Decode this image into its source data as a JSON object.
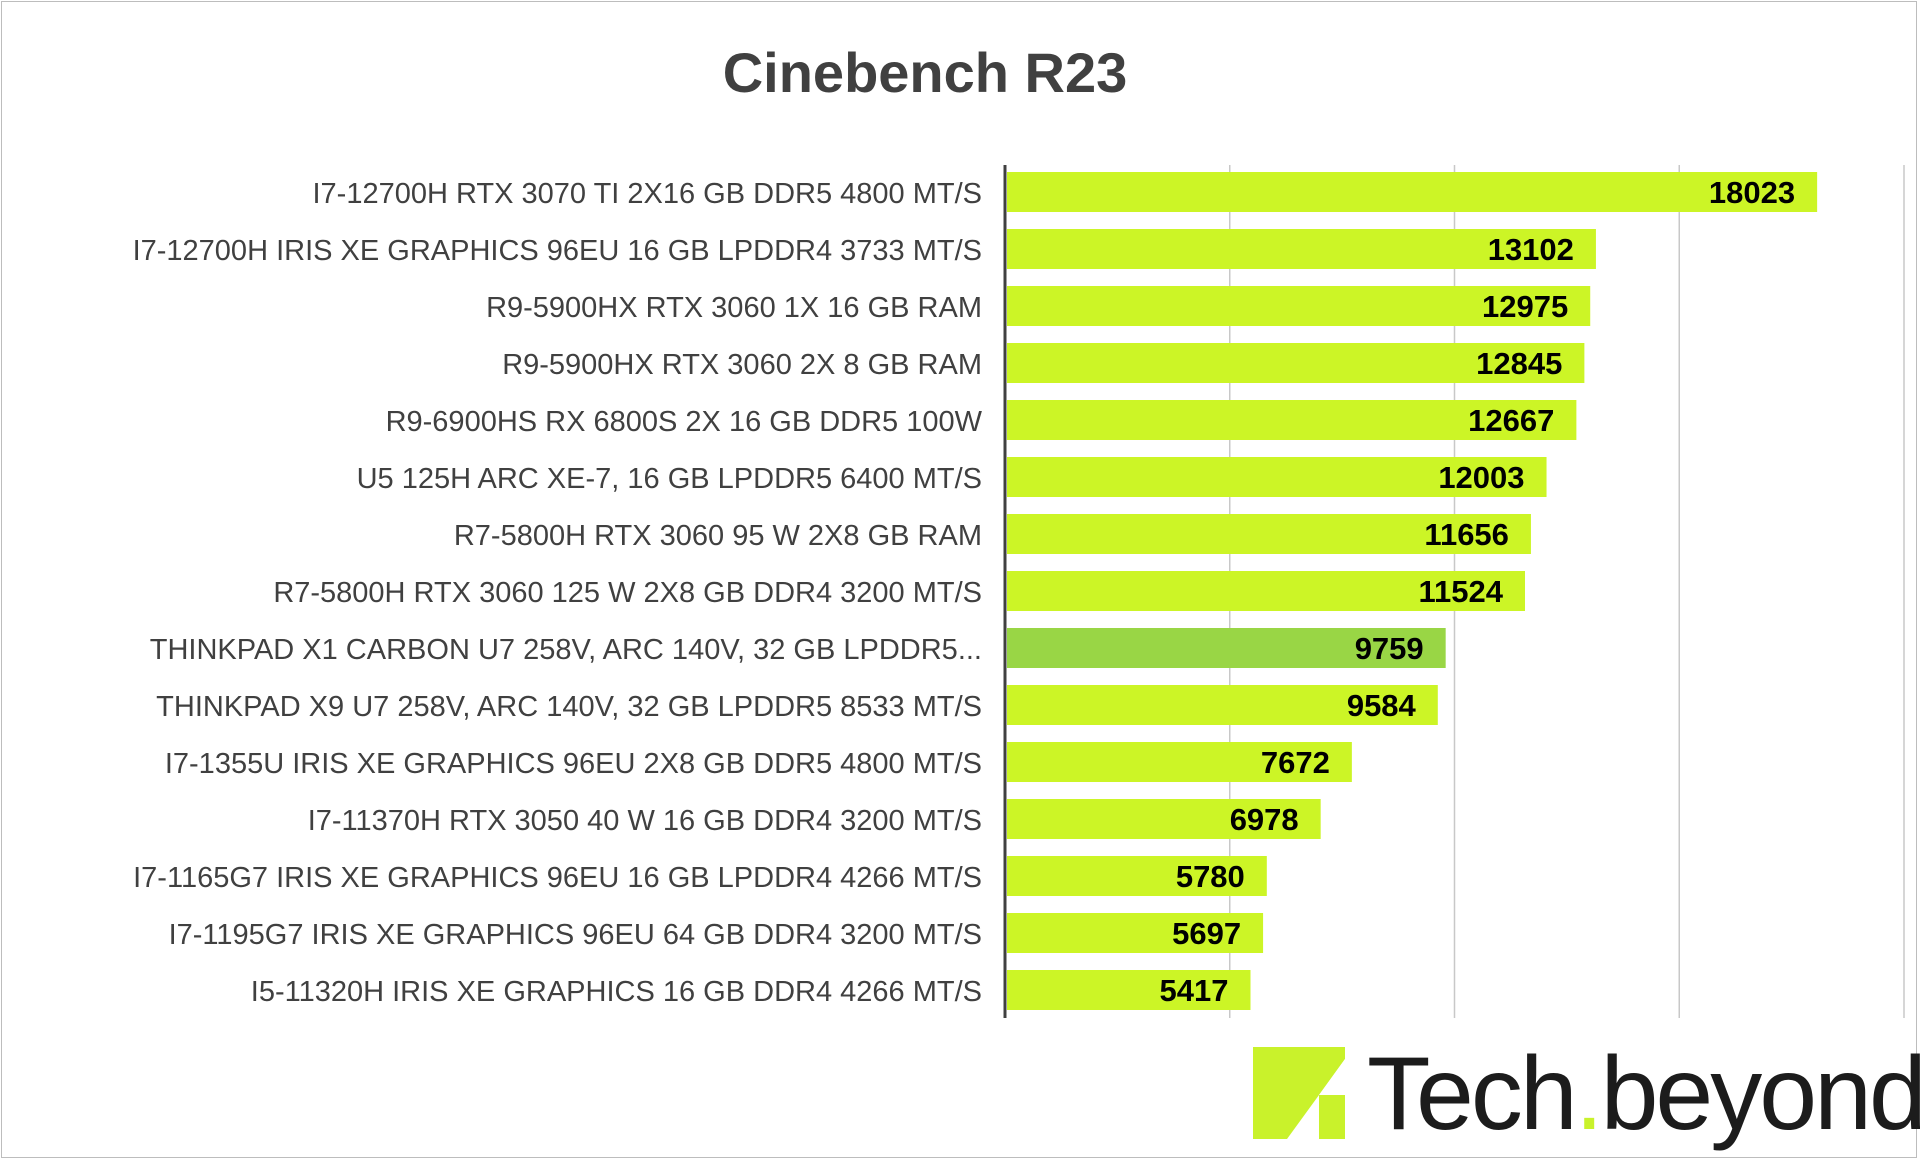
{
  "chart_data": {
    "type": "bar",
    "orientation": "horizontal",
    "title": "Cinebench R23",
    "xlabel": "",
    "ylabel": "",
    "xlim": [
      0,
      20000
    ],
    "grid": true,
    "legend": "none",
    "categories": [
      "I7-12700H RTX 3070 TI 2X16 GB DDR5 4800 MT/S",
      "I7-12700H IRIS XE GRAPHICS 96EU 16 GB LPDDR4 3733 MT/S",
      "R9-5900HX RTX 3060 1X 16 GB RAM",
      "R9-5900HX RTX 3060 2X 8 GB RAM",
      "R9-6900HS RX 6800S 2X 16 GB DDR5 100W",
      "U5 125H ARC XE-7, 16 GB LPDDR5 6400 MT/S",
      "R7-5800H RTX 3060 95 W 2X8 GB RAM",
      "R7-5800H RTX 3060 125 W 2X8 GB DDR4 3200 MT/S",
      "THINKPAD X1 CARBON U7 258V, ARC 140V, 32 GB LPDDR5...",
      "THINKPAD X9 U7 258V, ARC 140V, 32 GB LPDDR5 8533 MT/S",
      "I7-1355U  IRIS XE GRAPHICS 96EU 2X8 GB DDR5 4800 MT/S",
      "I7-11370H RTX 3050 40 W 16 GB DDR4 3200 MT/S",
      "I7-1165G7 IRIS XE GRAPHICS 96EU 16 GB LPDDR4 4266 MT/S",
      "I7-1195G7  IRIS XE GRAPHICS 96EU 64 GB DDR4 3200 MT/S",
      "I5-11320H IRIS XE GRAPHICS 16 GB DDR4 4266 MT/S"
    ],
    "values": [
      18023,
      13102,
      12975,
      12845,
      12667,
      12003,
      11656,
      11524,
      9759,
      9584,
      7672,
      6978,
      5780,
      5697,
      5417
    ],
    "highlight_index": 8,
    "colors": {
      "bar": "#ccf526",
      "highlight": "#99d645",
      "grid": "#c8c8c8",
      "axis": "#404040",
      "label": "#404040",
      "value_label": "#000000"
    }
  },
  "logo": {
    "name": "logo-mark",
    "text_main": "Tech",
    "text_dot": ".",
    "text_tail": "beyond"
  }
}
